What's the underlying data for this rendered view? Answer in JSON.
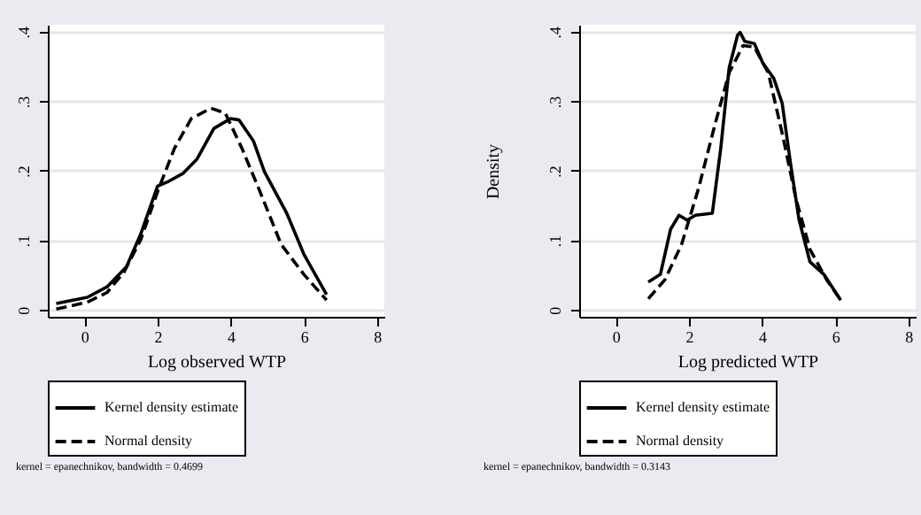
{
  "chart_data": [
    {
      "type": "line",
      "xlabel": "Log observed WTP",
      "xlim": [
        -1,
        8.2
      ],
      "xticks": [
        0,
        2,
        4,
        6,
        8
      ],
      "ylim": [
        -0.01,
        0.41
      ],
      "yticks": [
        {
          "value": 0,
          "label": "0"
        },
        {
          "value": 0.1,
          "label": ".1"
        },
        {
          "value": 0.2,
          "label": ".2"
        },
        {
          "value": 0.3,
          "label": ".3"
        },
        {
          "value": 0.4,
          "label": ".4"
        }
      ],
      "grid": "y",
      "legend": "bottom",
      "annotations": [
        "kernel = epanechnikov, bandwidth = 0.4699"
      ],
      "series": [
        {
          "name": "Kernel density estimate",
          "color": "#000000",
          "line_style": "solid",
          "x": [
            -0.77,
            0.08,
            0.62,
            1.15,
            1.54,
            2.0,
            2.31,
            2.69,
            3.08,
            3.54,
            4.0,
            4.23,
            4.62,
            4.92,
            5.54,
            6.0,
            6.62
          ],
          "values": [
            0.009,
            0.018,
            0.033,
            0.062,
            0.109,
            0.178,
            0.185,
            0.196,
            0.217,
            0.261,
            0.275,
            0.273,
            0.243,
            0.199,
            0.138,
            0.08,
            0.022
          ]
        },
        {
          "name": "Normal density",
          "color": "#000000",
          "line_style": "dashed",
          "x": [
            -0.77,
            0.08,
            0.62,
            1.08,
            1.54,
            2.0,
            2.46,
            2.92,
            3.46,
            3.85,
            4.31,
            4.77,
            5.38,
            6.0,
            6.62
          ],
          "values": [
            0.001,
            0.011,
            0.025,
            0.054,
            0.101,
            0.17,
            0.232,
            0.275,
            0.29,
            0.283,
            0.232,
            0.174,
            0.094,
            0.051,
            0.014
          ]
        }
      ]
    },
    {
      "type": "line",
      "xlabel": "Log predicted WTP",
      "ylabel": "Density",
      "xlim": [
        -1,
        8.2
      ],
      "xticks": [
        0,
        2,
        4,
        6,
        8
      ],
      "ylim": [
        -0.01,
        0.41
      ],
      "yticks": [
        {
          "value": 0,
          "label": "0"
        },
        {
          "value": 0.1,
          "label": ".1"
        },
        {
          "value": 0.2,
          "label": ".2"
        },
        {
          "value": 0.3,
          "label": ".3"
        },
        {
          "value": 0.4,
          "label": ".4"
        }
      ],
      "grid": "y",
      "legend": "bottom",
      "annotations": [
        "kernel = epanechnikov, bandwidth = 0.3143"
      ],
      "series": [
        {
          "name": "Kernel density estimate",
          "color": "#000000",
          "line_style": "solid",
          "x": [
            0.89,
            1.22,
            1.5,
            1.73,
            1.95,
            2.18,
            2.64,
            2.87,
            3.1,
            3.33,
            3.4,
            3.53,
            3.79,
            4.02,
            4.32,
            4.55,
            4.78,
            5.01,
            5.31,
            5.69,
            6.15
          ],
          "values": [
            0.04,
            0.051,
            0.116,
            0.136,
            0.129,
            0.136,
            0.139,
            0.232,
            0.348,
            0.395,
            0.399,
            0.386,
            0.383,
            0.355,
            0.333,
            0.297,
            0.21,
            0.13,
            0.069,
            0.051,
            0.014
          ]
        },
        {
          "name": "Normal density",
          "color": "#000000",
          "line_style": "dashed",
          "x": [
            0.89,
            1.34,
            1.8,
            2.26,
            2.72,
            3.1,
            3.48,
            3.79,
            4.17,
            4.55,
            4.93,
            5.31,
            5.77,
            6.15
          ],
          "values": [
            0.016,
            0.043,
            0.094,
            0.174,
            0.268,
            0.341,
            0.38,
            0.378,
            0.341,
            0.254,
            0.159,
            0.087,
            0.043,
            0.014
          ]
        }
      ]
    }
  ]
}
